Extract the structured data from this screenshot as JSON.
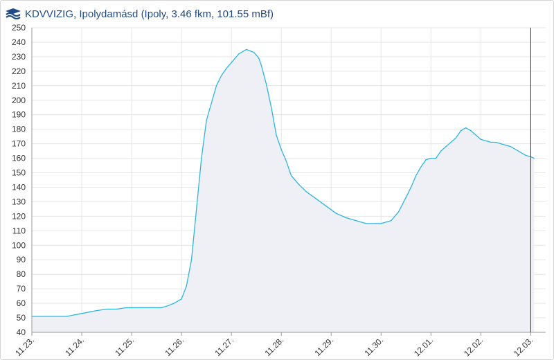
{
  "header": {
    "logo_icon": "kdvvizig-wave-logo-icon",
    "title": "KDVVIZIG, Ipolydamásd (Ipoly, 3.46 fkm, 101.55 mBf)"
  },
  "colors": {
    "line": "#29b6e0",
    "area": "#eef0f6",
    "grid": "#e6e6e6",
    "axis": "#999999",
    "marker": "#333333",
    "title": "#1f4a86"
  },
  "chart_data": {
    "type": "area",
    "ylim": [
      40,
      250
    ],
    "yticks": [
      40,
      50,
      60,
      70,
      80,
      90,
      100,
      110,
      120,
      130,
      140,
      150,
      160,
      170,
      180,
      190,
      200,
      210,
      220,
      230,
      240,
      250
    ],
    "xlim": [
      0,
      10.3
    ],
    "xticks": [
      {
        "x": 0,
        "label": "11.23."
      },
      {
        "x": 1,
        "label": "11.24."
      },
      {
        "x": 2,
        "label": "11.25."
      },
      {
        "x": 3,
        "label": "11.26."
      },
      {
        "x": 4,
        "label": "11.27."
      },
      {
        "x": 5,
        "label": "11.28."
      },
      {
        "x": 6,
        "label": "11.29."
      },
      {
        "x": 7,
        "label": "11.30."
      },
      {
        "x": 8,
        "label": "12.01."
      },
      {
        "x": 9,
        "label": "12.02."
      },
      {
        "x": 10,
        "label": "12.03."
      }
    ],
    "grid": true,
    "current_time_x": 10.0,
    "series": [
      {
        "x": [
          0,
          0.3,
          0.7,
          0.85,
          1.0,
          1.15,
          1.3,
          1.5,
          1.7,
          1.9,
          2.0,
          2.2,
          2.4,
          2.6,
          2.7,
          2.85,
          3.0,
          3.1,
          3.2,
          3.3,
          3.4,
          3.5,
          3.55,
          3.6,
          3.7,
          3.8,
          3.9,
          4.0,
          4.15,
          4.3,
          4.45,
          4.55,
          4.6,
          4.7,
          4.8,
          4.9,
          5.0,
          5.1,
          5.2,
          5.35,
          5.5,
          5.7,
          5.9,
          6.1,
          6.3,
          6.5,
          6.7,
          6.9,
          7.0,
          7.2,
          7.35,
          7.5,
          7.6,
          7.7,
          7.8,
          7.9,
          8.0,
          8.1,
          8.2,
          8.3,
          8.4,
          8.5,
          8.6,
          8.7,
          8.8,
          8.9,
          9.0,
          9.1,
          9.2,
          9.3,
          9.4,
          9.5,
          9.6,
          9.7,
          9.8,
          9.9,
          10.0,
          10.07
        ],
        "values": [
          51,
          51,
          51,
          52,
          53,
          54,
          55,
          56,
          56,
          57,
          57,
          57,
          57,
          57,
          58,
          60,
          63,
          72,
          90,
          125,
          160,
          186,
          192,
          198,
          210,
          217,
          222,
          226,
          232,
          235,
          233,
          229,
          224,
          211,
          195,
          176,
          166,
          158,
          148,
          142,
          137,
          132,
          127,
          122,
          119,
          117,
          115,
          115,
          115,
          117,
          123,
          133,
          140,
          148,
          154,
          159,
          160,
          160,
          165,
          168,
          171,
          174,
          179,
          181,
          179,
          176,
          173,
          172,
          171,
          171,
          170,
          169,
          168,
          166,
          164,
          162,
          161,
          160
        ]
      }
    ]
  }
}
